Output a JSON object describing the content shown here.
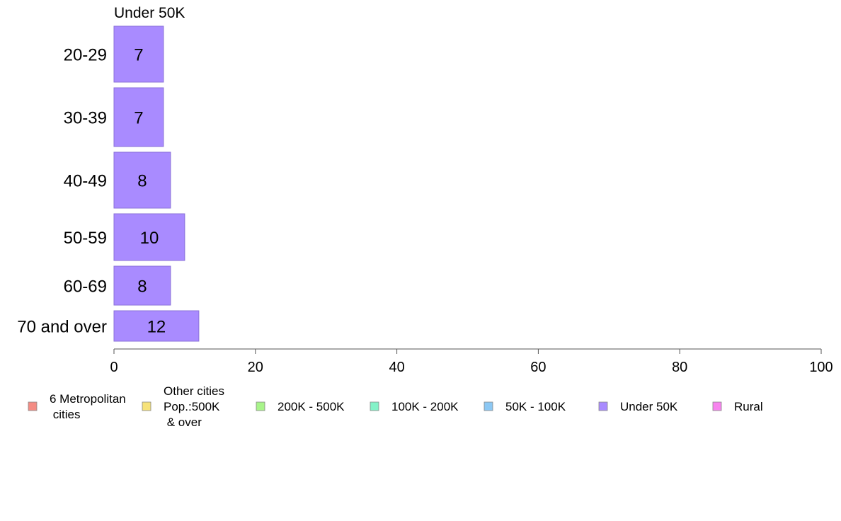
{
  "chart_data": {
    "type": "bar",
    "orientation": "horizontal",
    "title": "Under 50K",
    "categories": [
      "20-29",
      "30-39",
      "40-49",
      "50-59",
      "60-69",
      "70 and over"
    ],
    "series": [
      {
        "name": "Under 50K",
        "values": [
          7,
          7,
          8,
          10,
          8,
          12
        ],
        "color": "#A98BFF"
      }
    ],
    "xlim": [
      0,
      100
    ],
    "xticks": [
      0,
      20,
      40,
      60,
      80,
      100
    ],
    "grid": false,
    "legend": {
      "placement": "bottom",
      "items": [
        {
          "label": [
            "6 Metropolitan",
            " cities"
          ],
          "color": "#F48C84"
        },
        {
          "label": [
            "Other cities",
            "Pop.:500K",
            " & over"
          ],
          "color": "#F6E27A"
        },
        {
          "label": [
            "200K - 500K"
          ],
          "color": "#A8F48A"
        },
        {
          "label": [
            "100K - 200K"
          ],
          "color": "#84F2C8"
        },
        {
          "label": [
            "50K - 100K"
          ],
          "color": "#8CC8F4"
        },
        {
          "label": [
            "Under 50K"
          ],
          "color": "#A98BFF"
        },
        {
          "label": [
            "Rural"
          ],
          "color": "#F784EE"
        }
      ]
    }
  }
}
